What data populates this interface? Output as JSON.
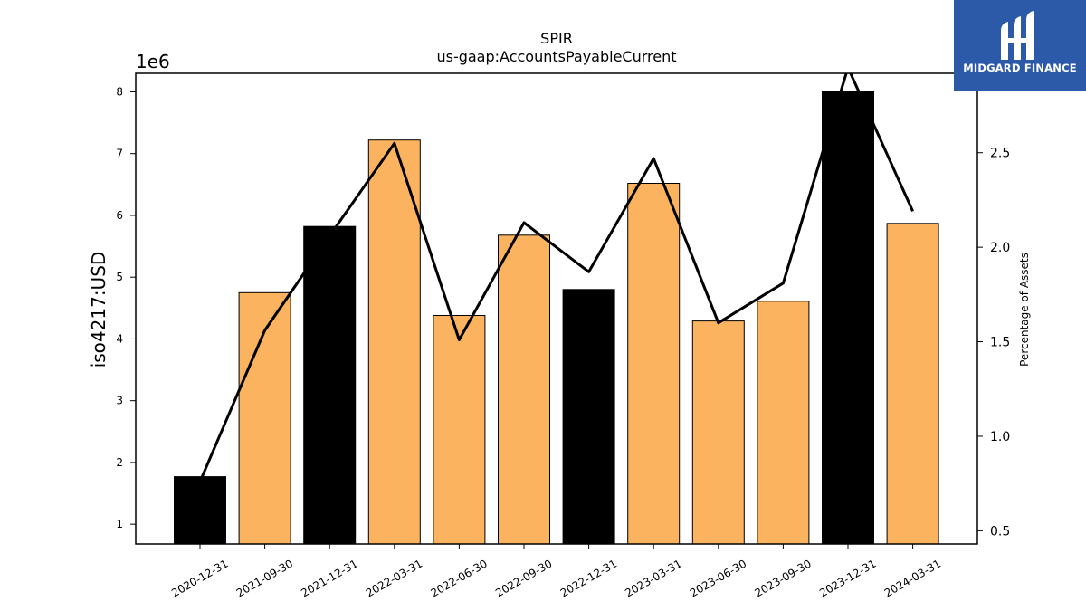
{
  "chart_data": {
    "type": "bar",
    "title": "SPIR",
    "subtitle": "us-gaap:AccountsPayableCurrent",
    "ylabel": "iso4217:USD",
    "y_offset_label": "1e6",
    "y2label": "Percentage of Assets",
    "categories": [
      "2020-12-31",
      "2021-09-30",
      "2021-12-31",
      "2022-03-31",
      "2022-06-30",
      "2022-09-30",
      "2022-12-31",
      "2023-03-31",
      "2023-06-30",
      "2023-09-30",
      "2023-12-31",
      "2024-03-31"
    ],
    "values": [
      1.77,
      4.75,
      5.82,
      7.22,
      4.38,
      5.68,
      4.8,
      6.52,
      4.29,
      4.61,
      8.01,
      5.87
    ],
    "bar_colors": [
      "#000000",
      "#fbb35f",
      "#000000",
      "#fbb35f",
      "#fbb35f",
      "#fbb35f",
      "#000000",
      "#fbb35f",
      "#fbb35f",
      "#fbb35f",
      "#000000",
      "#fbb35f"
    ],
    "line": {
      "values": [
        0.76,
        1.56,
        2.06,
        2.55,
        1.51,
        2.13,
        1.87,
        2.47,
        1.6,
        1.81,
        2.95,
        2.19
      ],
      "color": "#000000"
    },
    "ylim": [
      0.68,
      8.3
    ],
    "y_ticks": [
      1,
      2,
      3,
      4,
      5,
      6,
      7,
      8
    ],
    "y2lim": [
      0.43,
      2.92
    ],
    "y2_ticks": [
      0.5,
      1.0,
      1.5,
      2.0,
      2.5
    ],
    "y2_tick_labels": [
      "0.5",
      "1.0",
      "1.5",
      "2.0",
      "2.5"
    ],
    "colors": {
      "orange": "#fbb35f",
      "black": "#000000"
    },
    "grid": false
  },
  "logo": {
    "text": "MIDGARD FINANCE",
    "background": "#2d5aa8"
  }
}
